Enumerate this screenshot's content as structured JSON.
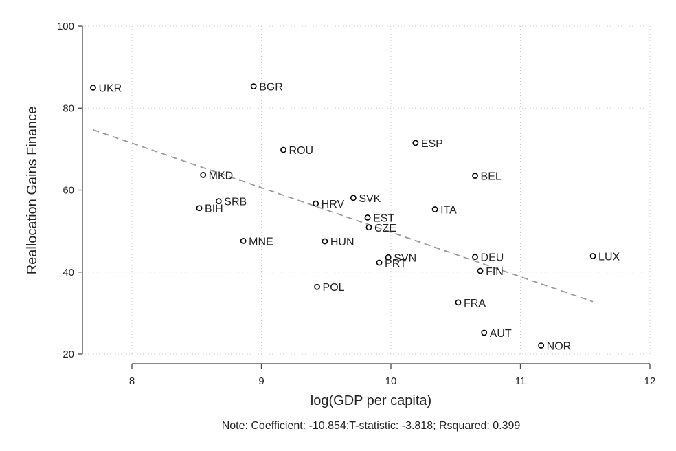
{
  "chart_data": {
    "type": "scatter",
    "title": "",
    "xlabel": "log(GDP per capita)",
    "ylabel": "Reallocation Gains Finance",
    "xlim": [
      7.6,
      12
    ],
    "ylim": [
      20,
      100
    ],
    "xticks": [
      8,
      9,
      10,
      11,
      12
    ],
    "yticks": [
      20,
      40,
      60,
      80,
      100
    ],
    "grid": true,
    "point_color": "#000000",
    "fit_line_color": "#999999",
    "points": [
      {
        "label": "UKR",
        "x": 7.7,
        "y": 85.0
      },
      {
        "label": "BGR",
        "x": 8.94,
        "y": 85.3
      },
      {
        "label": "ROU",
        "x": 9.17,
        "y": 69.8
      },
      {
        "label": "ESP",
        "x": 10.19,
        "y": 71.5
      },
      {
        "label": "MKD",
        "x": 8.55,
        "y": 63.7
      },
      {
        "label": "BEL",
        "x": 10.65,
        "y": 63.5
      },
      {
        "label": "SRB",
        "x": 8.67,
        "y": 57.3
      },
      {
        "label": "BIH",
        "x": 8.52,
        "y": 55.6
      },
      {
        "label": "SVK",
        "x": 9.71,
        "y": 58.1
      },
      {
        "label": "HRV",
        "x": 9.42,
        "y": 56.7
      },
      {
        "label": "ITA",
        "x": 10.34,
        "y": 55.3
      },
      {
        "label": "EST",
        "x": 9.82,
        "y": 53.3
      },
      {
        "label": "CZE",
        "x": 9.83,
        "y": 50.9
      },
      {
        "label": "MNE",
        "x": 8.86,
        "y": 47.6
      },
      {
        "label": "HUN",
        "x": 9.49,
        "y": 47.5
      },
      {
        "label": "SVN",
        "x": 9.98,
        "y": 43.6
      },
      {
        "label": "PRT",
        "x": 9.91,
        "y": 42.3
      },
      {
        "label": "DEU",
        "x": 10.65,
        "y": 43.7
      },
      {
        "label": "LUX",
        "x": 11.56,
        "y": 43.9
      },
      {
        "label": "FIN",
        "x": 10.69,
        "y": 40.3
      },
      {
        "label": "POL",
        "x": 9.43,
        "y": 36.4
      },
      {
        "label": "FRA",
        "x": 10.52,
        "y": 32.6
      },
      {
        "label": "AUT",
        "x": 10.72,
        "y": 25.2
      },
      {
        "label": "NOR",
        "x": 11.16,
        "y": 22.1
      }
    ],
    "fit_line": {
      "x": [
        7.7,
        11.56
      ],
      "y": [
        74.7,
        32.8
      ]
    },
    "note": "Note: Coefficient: -10.854;T-statistic: -3.818; Rsquared: 0.399"
  }
}
